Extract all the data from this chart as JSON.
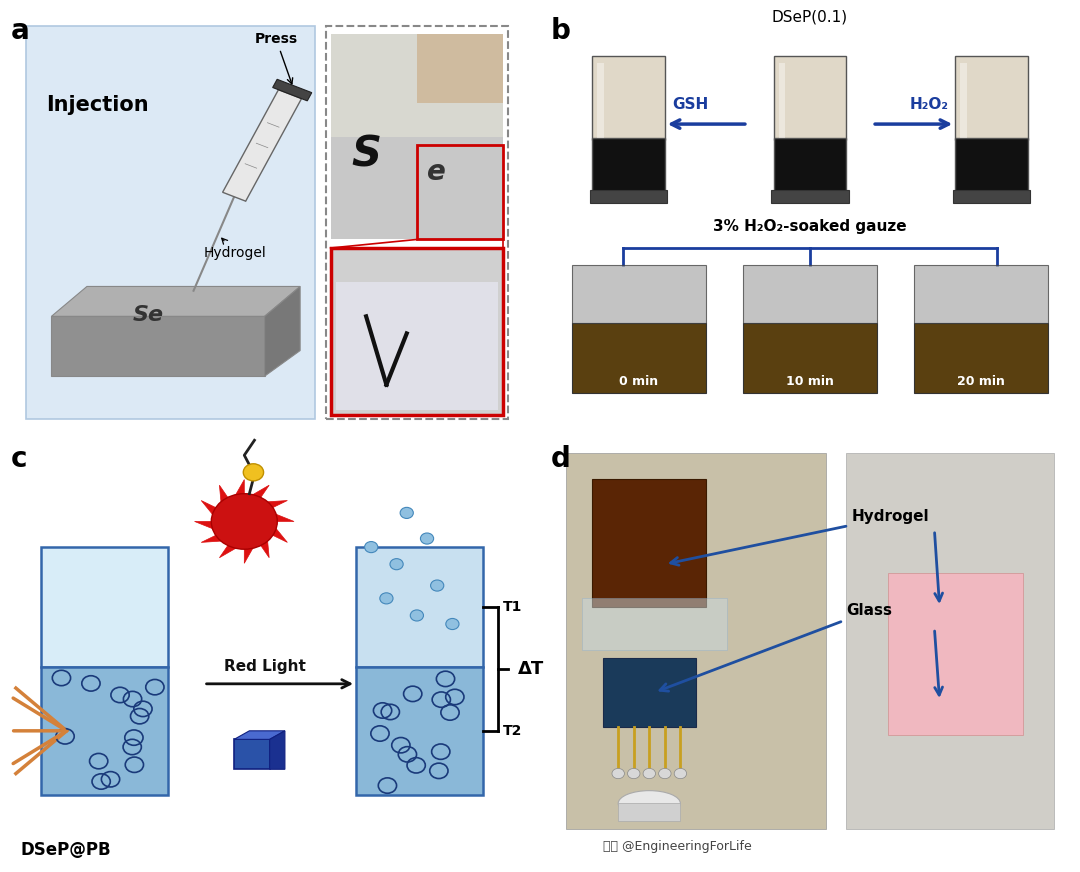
{
  "figure_bg": "#ffffff",
  "panel_label_fontsize": 20,
  "panel_label_weight": "bold",
  "panel_a": {
    "bg_color": "#dce9f5",
    "border_color": "#b0c8e0",
    "label_injection": "Injection",
    "label_press": "Press",
    "label_hydrogel": "Hydrogel",
    "label_Se_platform": "Se",
    "injection_fontsize": 15,
    "press_fontsize": 10,
    "hydrogel_fontsize": 10
  },
  "panel_b": {
    "label_dsep": "DSeP(0.1)",
    "label_gsh": "GSH",
    "label_h2o2": "H₂O₂",
    "label_gauze": "3% H₂O₂-soaked gauze",
    "label_0min": "0 min",
    "label_10min": "10 min",
    "label_20min": "20 min",
    "arrow_color": "#1a3d9e",
    "fontsize": 11
  },
  "panel_c": {
    "label_red_light": "Red Light",
    "label_T1": "T1",
    "label_T2": "T2",
    "label_deltaT": "ΔT",
    "label_dsepatpb": "DSeP@PB",
    "arrow_color": "#1a3a7a",
    "box_border": "#3366aa",
    "box_top_color": "#d8edf8",
    "box_gel_color": "#8ab8d8",
    "gel_dot_color": "#1a3a7a",
    "light_color": "#d4813a",
    "cube_color": "#2a52a8",
    "bubble_color": "#a0c8e0",
    "fontsize": 11
  },
  "panel_d": {
    "label_hydrogel": "Hydrogel",
    "label_glass": "Glass",
    "arrow_color": "#1f4fa0",
    "photo_bg": "#c8c0b0",
    "hydrogel_color": "#5a2505",
    "circuit_color": "#1a3a5a",
    "gold_color": "#c8a020",
    "wall_color": "#d0cec8",
    "pink_color": "#f0b8c0",
    "fontsize": 11
  },
  "watermark": "头条 @EngineeringForLife"
}
